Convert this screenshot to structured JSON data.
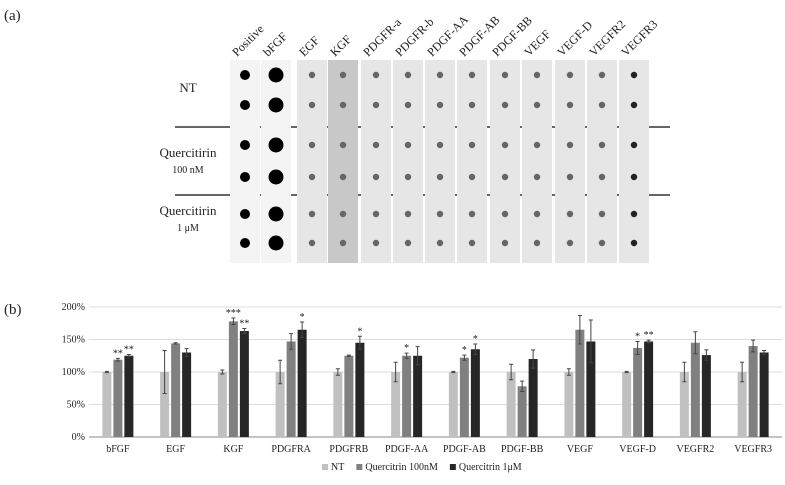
{
  "panel_a": {
    "label": "(a)",
    "columns": [
      "Positive",
      "bFGF",
      "EGF",
      "KGF",
      "PDGFR-a",
      "PDGFR-b",
      "PDGF-AA",
      "PDGF-AB",
      "PDGF-BB",
      "VEGF",
      "VEGF-D",
      "VEGFR2",
      "VEGFR3"
    ],
    "rows": [
      {
        "label": "NT"
      },
      {
        "label": "Quercitirin",
        "sublabel": "100 nM"
      },
      {
        "label": "Quercitirin",
        "sublabel": "1 μM"
      }
    ]
  },
  "panel_b_label": "(b)",
  "chart_data": {
    "type": "bar",
    "categories": [
      "bFGF",
      "EGF",
      "KGF",
      "PDGFRA",
      "PDGFRB",
      "PDGF-AA",
      "PDGF-AB",
      "PDGF-BB",
      "VEGF",
      "VEGF-D",
      "VEGFR2",
      "VEGFR3"
    ],
    "series": [
      {
        "name": "NT",
        "color": "#c0c0c0",
        "values": [
          100,
          100,
          100,
          100,
          100,
          100,
          100,
          100,
          100,
          100,
          100,
          100
        ],
        "errors": [
          1,
          33,
          3,
          18,
          5,
          15,
          1,
          12,
          5,
          1,
          15,
          15
        ],
        "significance": [
          null,
          null,
          null,
          null,
          null,
          null,
          null,
          null,
          null,
          null,
          null,
          null
        ]
      },
      {
        "name": "Quercitrin 100nM",
        "color": "#808080",
        "values": [
          119,
          144,
          178,
          147,
          125,
          125,
          122,
          78,
          165,
          137,
          145,
          140
        ],
        "errors": [
          2,
          1,
          5,
          12,
          1,
          4,
          4,
          8,
          22,
          10,
          17,
          9
        ],
        "significance": [
          "**",
          null,
          "***",
          null,
          null,
          "*",
          "*",
          null,
          null,
          "*",
          null,
          null
        ]
      },
      {
        "name": "Quercitrin 1μM",
        "color": "#262626",
        "values": [
          125,
          130,
          163,
          165,
          145,
          125,
          135,
          120,
          147,
          147,
          126,
          130
        ],
        "errors": [
          2,
          6,
          4,
          12,
          10,
          14,
          8,
          14,
          33,
          2,
          8,
          3
        ],
        "significance": [
          "**",
          null,
          "**",
          "*",
          "*",
          null,
          "*",
          null,
          null,
          "**",
          null,
          null
        ]
      }
    ],
    "ylim": [
      0,
      200
    ],
    "yticks": [
      {
        "value": 0,
        "label": "0%"
      },
      {
        "value": 50,
        "label": "50%"
      },
      {
        "value": 100,
        "label": "100%"
      },
      {
        "value": 150,
        "label": "150%"
      },
      {
        "value": 200,
        "label": "200%"
      }
    ],
    "grid": true,
    "legend": "bottom"
  }
}
